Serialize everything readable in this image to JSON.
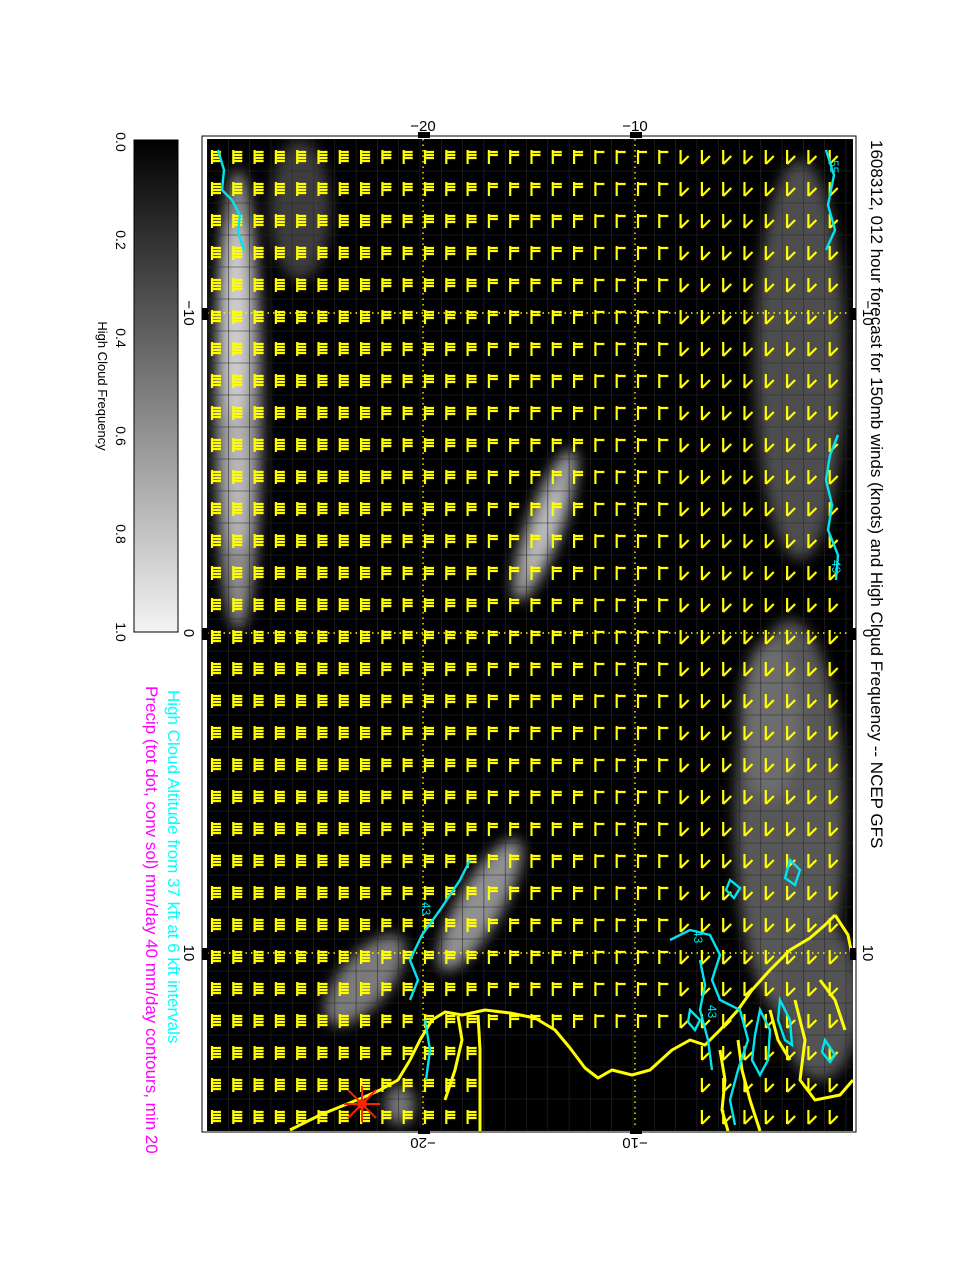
{
  "title": "1608312, 012 hour forecast for 150mb winds (knots) and High Cloud Frequency -- NCEP GFS",
  "subtitle_1": "High Cloud Altitude from 37 kft at 6 kft intervals",
  "subtitle_2": "Precip (tot dot, conv sol) mm/day 40 mm/day contours, min 20",
  "colorbar": {
    "label": "High Cloud Frequency",
    "ticks": [
      "0.0",
      "0.2",
      "0.4",
      "0.6",
      "0.8",
      "1.0"
    ]
  },
  "top_axis_ticks": [
    "−20",
    "−10"
  ],
  "bottom_axis_ticks": [
    "−20",
    "−10"
  ],
  "left_axis_ticks": [
    "−10",
    "0",
    "10"
  ],
  "right_axis_ticks": [
    "−10",
    "0",
    "10"
  ],
  "contour_labels": [
    "55",
    "49",
    "43",
    "43",
    "43"
  ],
  "colors": {
    "background": "#000000",
    "wind_barbs": "#ffff00",
    "coastline": "#ffff00",
    "grid": "#ffff00",
    "cloud_altitude_contours": "#00e5ee",
    "subtitle_1": "#00ffff",
    "subtitle_2": "#ff00ff",
    "storm_marker": "#ff2200"
  },
  "projection": "rotated 90 degrees clockwise",
  "chart_data": {
    "type": "map",
    "fields": [
      "150mb wind barbs (knots)",
      "High cloud frequency (grey shading, 0 to 1)",
      "High cloud altitude contours (cyan)"
    ],
    "colorbar_range": [
      0,
      1
    ]
  }
}
